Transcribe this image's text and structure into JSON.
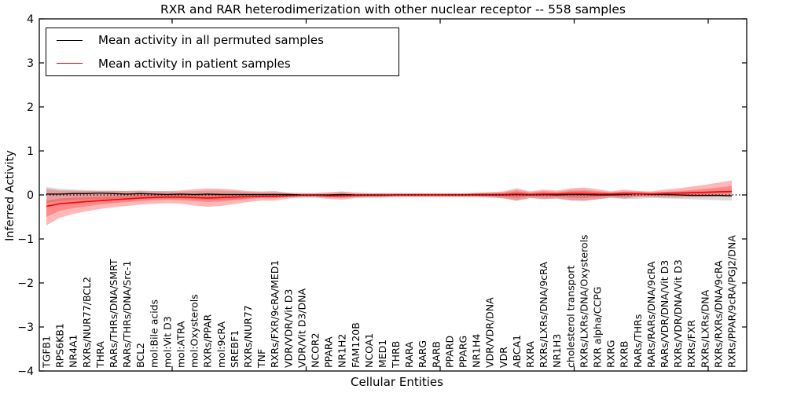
{
  "chart": {
    "title": "RXR and RAR heterodimerization with other nuclear receptor -- 558 samples",
    "xlabel": "Cellular Entities",
    "ylabel": "Inferred Activity",
    "legend": [
      "Mean activity in all permuted samples",
      "Mean activity in patient samples"
    ]
  },
  "chart_data": {
    "type": "line",
    "title": "RXR and RAR heterodimerization with other nuclear receptor -- 558 samples",
    "xlabel": "Cellular Entities",
    "ylabel": "Inferred Activity",
    "ylim": [
      -4,
      4
    ],
    "ytick_values": [
      4,
      3,
      2,
      1,
      0,
      -1,
      -2,
      -3,
      -4
    ],
    "ytick_labels": [
      "4",
      "3",
      "2",
      "1",
      "0",
      "−1",
      "−2",
      "−3",
      "−4"
    ],
    "grid": false,
    "legend_position": "upper left",
    "reference_line_y": 0,
    "colors": {
      "permuted_line": "#000000",
      "patient_line": "#ff0000",
      "permuted_band": "rgba(0,0,0,0.14)",
      "patient_band_outer": "rgba(255,0,0,0.28)",
      "patient_band_inner": "rgba(255,0,0,0.25)",
      "reference_line": "#000000"
    },
    "categories": [
      "TGFB1",
      "RPS6KB1",
      "NR4A1",
      "RXRs/NUR77/BCL2",
      "THRA",
      "RARs/THRs/DNA/SMRT",
      "RARs/THRs/DNA/Src-1",
      "BCL2",
      "mol:Bile acids",
      "mol:Vit D3",
      "mol:ATRA",
      "mol:Oxysterols",
      "RXRs/PPAR",
      "mol:9cRA",
      "SREBF1",
      "RXRs/NUR77",
      "TNF",
      "RXRs/FXR/9cRA/MED1",
      "VDR/VDR/Vit D3",
      "VDR/Vit D3/DNA",
      "NCOR2",
      "PPARA",
      "NR1H2",
      "FAM120B",
      "NCOA1",
      "MED1",
      "THRB",
      "RARA",
      "RARG",
      "RARB",
      "PPARD",
      "PPARG",
      "NR1H4",
      "VDR/VDR/DNA",
      "VDR",
      "ABCA1",
      "RXRA",
      "RXRs/LXRs/DNA/9cRA",
      "NR1H3",
      "cholesterol transport",
      "RXRs/LXRs/DNA/Oxysterols",
      "RXR alpha/CCPG",
      "RXRG",
      "RXRB",
      "RARs/THRs",
      "RARs/RARs/DNA/9cRA",
      "RARs/VDR/DNA/Vit D3",
      "RXRs/VDR/DNA/Vit D3",
      "RXRs/FXR",
      "RXRs/LXRs/DNA",
      "RXRs/RXRs/DNA/9cRA",
      "RXRs/PPAR/9cRA/PGJ2/DNA"
    ],
    "series": [
      {
        "name": "Mean activity in all permuted samples",
        "color": "#000000",
        "style": "solid",
        "values": [
          0.02,
          0.02,
          0.03,
          0.03,
          0.04,
          0.03,
          0.02,
          0.03,
          0.02,
          0.01,
          0.02,
          0.01,
          0.02,
          0.01,
          0.01,
          0.01,
          0.01,
          0.01,
          0.01,
          0.0,
          0.0,
          0.0,
          0.01,
          0.0,
          0.0,
          0.0,
          0.0,
          0.0,
          0.0,
          0.0,
          0.0,
          0.0,
          0.0,
          0.0,
          0.0,
          0.01,
          0.0,
          0.01,
          0.0,
          0.01,
          0.01,
          0.0,
          0.0,
          0.01,
          0.03,
          0.01,
          0.01,
          0.0,
          -0.01,
          -0.01,
          -0.01,
          -0.02
        ]
      },
      {
        "name": "Mean activity in patient samples",
        "color": "#ff0000",
        "style": "solid",
        "values": [
          -0.26,
          -0.2,
          -0.175,
          -0.15,
          -0.13,
          -0.11,
          -0.09,
          -0.07,
          -0.06,
          -0.05,
          -0.05,
          -0.06,
          -0.07,
          -0.06,
          -0.05,
          -0.04,
          -0.03,
          -0.03,
          -0.02,
          -0.01,
          -0.01,
          -0.02,
          -0.02,
          -0.01,
          -0.01,
          -0.01,
          0.0,
          0.0,
          0.0,
          0.0,
          0.0,
          0.0,
          0.01,
          0.01,
          0.01,
          0.02,
          0.01,
          0.02,
          0.02,
          0.03,
          0.03,
          0.02,
          0.02,
          0.03,
          0.03,
          0.02,
          0.03,
          0.04,
          0.05,
          0.06,
          0.07,
          0.08
        ]
      }
    ],
    "bands": [
      {
        "name": "permuted samples band",
        "color": "rgba(0,0,0,0.14)",
        "upper": [
          0.18,
          0.14,
          0.12,
          0.11,
          0.1,
          0.1,
          0.09,
          0.09,
          0.08,
          0.08,
          0.08,
          0.09,
          0.1,
          0.1,
          0.09,
          0.07,
          0.06,
          0.06,
          0.05,
          0.04,
          0.04,
          0.05,
          0.06,
          0.05,
          0.04,
          0.04,
          0.04,
          0.04,
          0.04,
          0.04,
          0.04,
          0.04,
          0.04,
          0.05,
          0.06,
          0.11,
          0.06,
          0.09,
          0.07,
          0.11,
          0.12,
          0.09,
          0.06,
          0.08,
          0.08,
          0.06,
          0.07,
          0.07,
          0.08,
          0.08,
          0.09,
          0.09
        ],
        "lower": [
          -0.18,
          -0.14,
          -0.12,
          -0.11,
          -0.1,
          -0.1,
          -0.09,
          -0.09,
          -0.08,
          -0.08,
          -0.08,
          -0.1,
          -0.11,
          -0.11,
          -0.1,
          -0.08,
          -0.06,
          -0.06,
          -0.05,
          -0.04,
          -0.04,
          -0.06,
          -0.07,
          -0.05,
          -0.04,
          -0.04,
          -0.04,
          -0.04,
          -0.04,
          -0.04,
          -0.04,
          -0.04,
          -0.04,
          -0.05,
          -0.07,
          -0.13,
          -0.07,
          -0.1,
          -0.08,
          -0.13,
          -0.14,
          -0.1,
          -0.07,
          -0.09,
          -0.09,
          -0.07,
          -0.08,
          -0.09,
          -0.1,
          -0.11,
          -0.12,
          -0.13
        ]
      },
      {
        "name": "patient samples outer band",
        "color": "rgba(255,0,0,0.28)",
        "upper": [
          0.14,
          0.1,
          0.1,
          0.09,
          0.09,
          0.09,
          0.09,
          0.1,
          0.09,
          0.09,
          0.1,
          0.13,
          0.15,
          0.14,
          0.12,
          0.09,
          0.08,
          0.09,
          0.05,
          0.04,
          0.04,
          0.06,
          0.08,
          0.05,
          0.04,
          0.04,
          0.04,
          0.04,
          0.04,
          0.04,
          0.04,
          0.04,
          0.05,
          0.06,
          0.08,
          0.15,
          0.08,
          0.12,
          0.1,
          0.15,
          0.17,
          0.13,
          0.08,
          0.12,
          0.09,
          0.08,
          0.12,
          0.15,
          0.19,
          0.23,
          0.28,
          0.33
        ],
        "lower": [
          -0.69,
          -0.52,
          -0.43,
          -0.37,
          -0.32,
          -0.28,
          -0.25,
          -0.22,
          -0.2,
          -0.19,
          -0.2,
          -0.24,
          -0.27,
          -0.25,
          -0.21,
          -0.16,
          -0.13,
          -0.13,
          -0.08,
          -0.06,
          -0.06,
          -0.09,
          -0.11,
          -0.07,
          -0.06,
          -0.06,
          -0.05,
          -0.05,
          -0.05,
          -0.05,
          -0.05,
          -0.05,
          -0.05,
          -0.06,
          -0.08,
          -0.13,
          -0.07,
          -0.09,
          -0.08,
          -0.12,
          -0.13,
          -0.1,
          -0.06,
          -0.08,
          -0.05,
          -0.05,
          -0.06,
          -0.06,
          -0.05,
          -0.05,
          -0.04,
          -0.04
        ]
      },
      {
        "name": "patient samples inner band",
        "color": "rgba(255,0,0,0.25)",
        "upper": [
          -0.13,
          -0.08,
          -0.06,
          -0.05,
          -0.04,
          -0.03,
          -0.02,
          0.0,
          0.0,
          0.01,
          0.01,
          0.02,
          0.03,
          0.03,
          0.02,
          0.01,
          0.01,
          0.02,
          0.01,
          0.01,
          0.01,
          0.01,
          0.02,
          0.01,
          0.01,
          0.01,
          0.02,
          0.02,
          0.02,
          0.02,
          0.02,
          0.02,
          0.03,
          0.03,
          0.04,
          0.08,
          0.04,
          0.06,
          0.05,
          0.08,
          0.09,
          0.07,
          0.05,
          0.07,
          0.05,
          0.05,
          0.07,
          0.09,
          0.11,
          0.14,
          0.17,
          0.2
        ],
        "lower": [
          -0.5,
          -0.36,
          -0.3,
          -0.26,
          -0.22,
          -0.19,
          -0.16,
          -0.14,
          -0.12,
          -0.11,
          -0.12,
          -0.14,
          -0.16,
          -0.15,
          -0.12,
          -0.09,
          -0.07,
          -0.07,
          -0.05,
          -0.03,
          -0.03,
          -0.05,
          -0.06,
          -0.04,
          -0.03,
          -0.03,
          -0.02,
          -0.02,
          -0.02,
          -0.02,
          -0.02,
          -0.02,
          -0.02,
          -0.03,
          -0.04,
          -0.07,
          -0.03,
          -0.05,
          -0.04,
          -0.06,
          -0.07,
          -0.05,
          -0.02,
          -0.04,
          -0.02,
          -0.01,
          -0.01,
          0.0,
          0.01,
          0.02,
          0.03,
          0.04
        ]
      }
    ]
  }
}
